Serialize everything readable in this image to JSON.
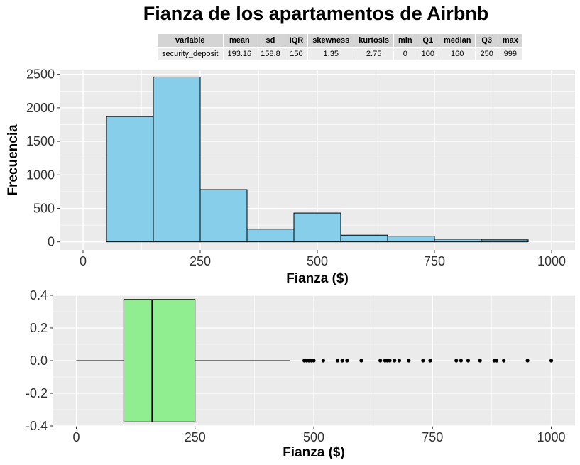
{
  "title": "Fianza de los apartamentos de Airbnb",
  "stats_table": {
    "headers": [
      "variable",
      "mean",
      "sd",
      "IQR",
      "skewness",
      "kurtosis",
      "min",
      "Q1",
      "median",
      "Q3",
      "max"
    ],
    "row": [
      "security_deposit",
      "193.16",
      "158.8",
      "150",
      "1.35",
      "2.75",
      "0",
      "100",
      "160",
      "250",
      "999"
    ]
  },
  "colors": {
    "panel_bg": "#ebebeb",
    "grid": "#ffffff",
    "histogram_fill": "#87ceeb",
    "box_fill": "#90ee90",
    "outline": "#000000"
  },
  "chart_data": [
    {
      "type": "bar",
      "subtype": "histogram",
      "bin_width": 100,
      "bins": [
        {
          "start": 50,
          "end": 150,
          "count": 1870
        },
        {
          "start": 150,
          "end": 250,
          "count": 2460
        },
        {
          "start": 250,
          "end": 350,
          "count": 780
        },
        {
          "start": 350,
          "end": 450,
          "count": 190
        },
        {
          "start": 450,
          "end": 550,
          "count": 430
        },
        {
          "start": 550,
          "end": 650,
          "count": 100
        },
        {
          "start": 650,
          "end": 750,
          "count": 85
        },
        {
          "start": 750,
          "end": 850,
          "count": 40
        },
        {
          "start": 850,
          "end": 950,
          "count": 30
        }
      ],
      "xlabel": "Fianza ($)",
      "ylabel": "Frecuencia",
      "xlim": [
        -50,
        1050
      ],
      "ylim": [
        -120,
        2560
      ],
      "x_ticks": [
        "0",
        "250",
        "500",
        "750",
        "1000"
      ],
      "y_ticks": [
        "0",
        "500",
        "1000",
        "1500",
        "2000",
        "2500"
      ],
      "grid": true
    },
    {
      "type": "boxplot",
      "orientation": "horizontal",
      "min_whisker": 0,
      "q1": 100,
      "median": 160,
      "q3": 250,
      "max_whisker": 450,
      "box_y_range": [
        -0.375,
        0.375
      ],
      "outliers": [
        480,
        485,
        490,
        495,
        500,
        520,
        550,
        560,
        570,
        600,
        640,
        650,
        655,
        660,
        670,
        680,
        700,
        730,
        745,
        800,
        810,
        825,
        850,
        880,
        885,
        900,
        950,
        1000
      ],
      "xlabel": "Fianza ($)",
      "xlim": [
        -50,
        1050
      ],
      "ylim": [
        -0.4,
        0.4
      ],
      "x_ticks": [
        "0",
        "250",
        "500",
        "750",
        "1000"
      ],
      "y_ticks": [
        "-0.4",
        "-0.2",
        "0.0",
        "0.2",
        "0.4"
      ],
      "grid": true
    }
  ]
}
